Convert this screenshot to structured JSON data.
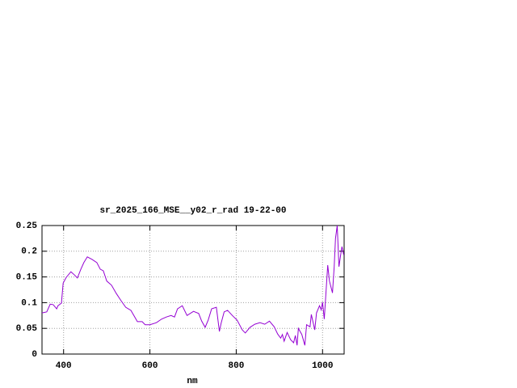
{
  "chart_data": {
    "type": "line",
    "title": "sr_2025_166_MSE__y02_r_rad 19-22-00",
    "x_label": "nm",
    "xlim": [
      350,
      1050
    ],
    "xticks": [
      400,
      600,
      800,
      1000
    ],
    "ylim": [
      0,
      0.25
    ],
    "yticks": [
      0,
      0.05,
      0.1,
      0.15,
      0.2,
      0.25
    ],
    "grid": true,
    "series": [
      {
        "color": "#9400d3",
        "x": [
          350,
          361,
          369,
          376,
          384,
          387,
          395,
          399,
          406,
          417,
          425,
          432,
          440,
          447,
          455,
          466,
          477,
          485,
          492,
          500,
          511,
          522,
          533,
          544,
          556,
          571,
          582,
          589,
          600,
          615,
          627,
          638,
          649,
          657,
          664,
          675,
          686,
          701,
          713,
          720,
          728,
          735,
          743,
          754,
          761,
          765,
          772,
          780,
          791,
          802,
          814,
          821,
          832,
          843,
          855,
          866,
          877,
          888,
          896,
          903,
          907,
          911,
          918,
          926,
          933,
          937,
          941,
          944,
          952,
          959,
          963,
          971,
          974,
          982,
          986,
          993,
          997,
          1000,
          1004,
          1012,
          1016,
          1023,
          1027,
          1030,
          1034,
          1038,
          1042,
          1045,
          1049
        ],
        "values": [
          0.08,
          0.082,
          0.097,
          0.096,
          0.088,
          0.094,
          0.099,
          0.138,
          0.149,
          0.16,
          0.154,
          0.148,
          0.165,
          0.178,
          0.189,
          0.184,
          0.178,
          0.165,
          0.162,
          0.142,
          0.134,
          0.118,
          0.104,
          0.091,
          0.085,
          0.063,
          0.063,
          0.057,
          0.057,
          0.061,
          0.068,
          0.072,
          0.075,
          0.072,
          0.088,
          0.094,
          0.075,
          0.083,
          0.079,
          0.064,
          0.052,
          0.066,
          0.088,
          0.091,
          0.044,
          0.06,
          0.082,
          0.085,
          0.075,
          0.066,
          0.047,
          0.041,
          0.052,
          0.058,
          0.061,
          0.058,
          0.064,
          0.053,
          0.039,
          0.031,
          0.038,
          0.025,
          0.042,
          0.028,
          0.022,
          0.036,
          0.017,
          0.05,
          0.038,
          0.017,
          0.057,
          0.053,
          0.077,
          0.047,
          0.08,
          0.094,
          0.086,
          0.101,
          0.068,
          0.173,
          0.142,
          0.119,
          0.17,
          0.225,
          0.25,
          0.17,
          0.193,
          0.209,
          0.193
        ]
      }
    ]
  }
}
